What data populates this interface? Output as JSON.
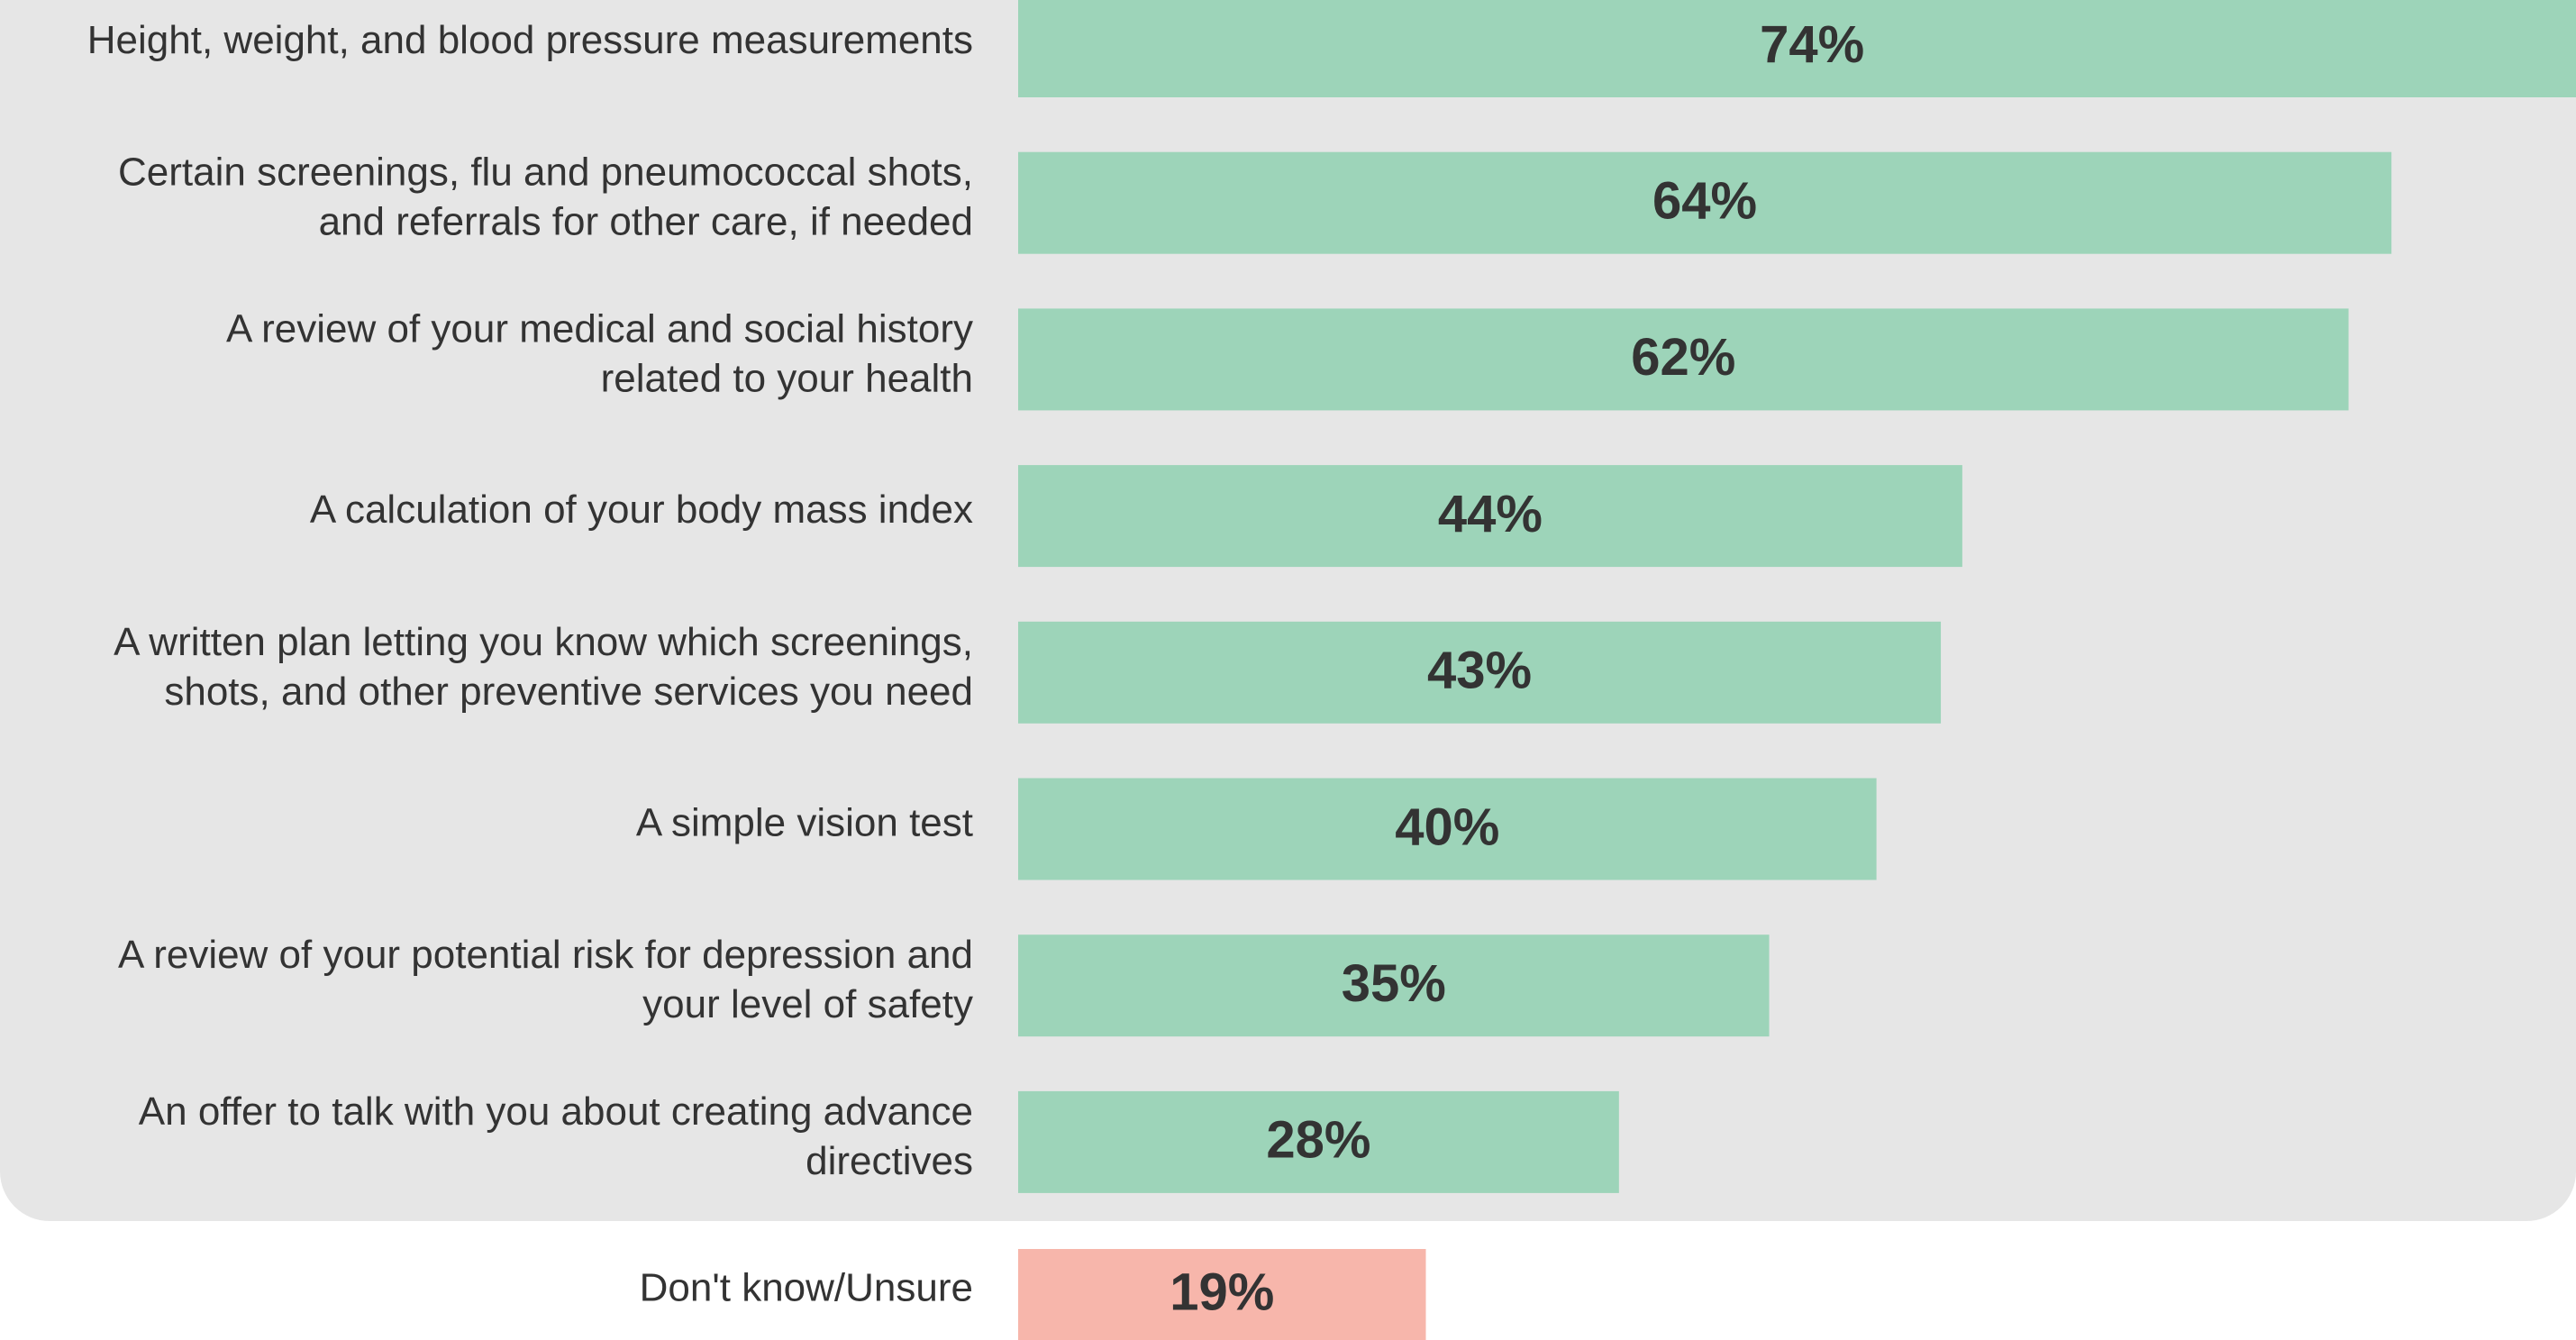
{
  "chart_data": {
    "type": "hbar",
    "categories": [
      "Height, weight, and blood pressure measurements",
      "Certain screenings, flu and pneumococcal shots,\nand referrals for other care, if needed",
      "A review of your medical and social history\nrelated to your health",
      "A calculation of your body mass index",
      "A written plan letting you know which screenings,\nshots, and other preventive services you need",
      "A simple vision test",
      "A review of your potential risk for depression and\nyour level of safety",
      "An offer to talk with you about creating advance\ndirectives",
      "Don't know/Unsure"
    ],
    "values": [
      74,
      64,
      62,
      44,
      43,
      40,
      35,
      28,
      19
    ],
    "value_labels": [
      "74%",
      "64%",
      "62%",
      "44%",
      "43%",
      "40%",
      "35%",
      "28%",
      "19%"
    ],
    "colors": [
      "#9dd4b9",
      "#9dd4b9",
      "#9dd4b9",
      "#9dd4b9",
      "#9dd4b9",
      "#9dd4b9",
      "#9dd4b9",
      "#9dd4b9",
      "#f7b6ab"
    ],
    "xlim": [
      0,
      72.6
    ]
  }
}
